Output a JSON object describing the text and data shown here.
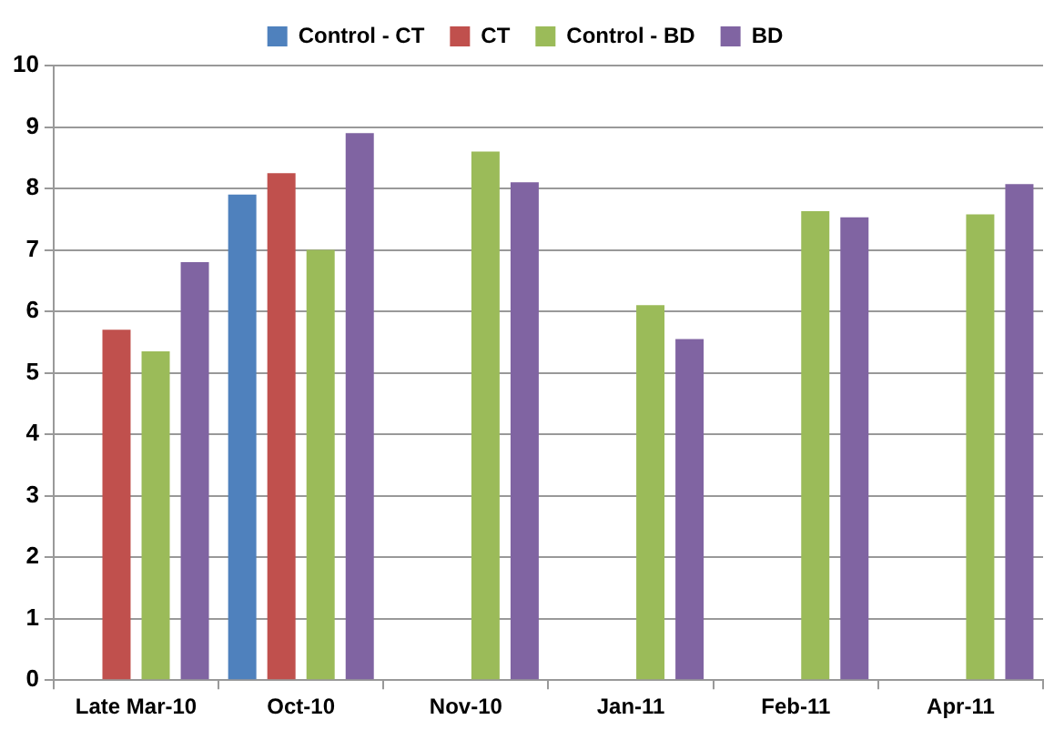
{
  "chart_data": {
    "type": "bar",
    "categories": [
      "Late Mar-10",
      "Oct-10",
      "Nov-10",
      "Jan-11",
      "Feb-11",
      "Apr-11"
    ],
    "series": [
      {
        "name": "Control - CT",
        "color": "#4f81bd",
        "values": [
          null,
          7.9,
          null,
          null,
          null,
          null
        ]
      },
      {
        "name": "CT",
        "color": "#c0504d",
        "values": [
          5.7,
          8.25,
          null,
          null,
          null,
          null
        ]
      },
      {
        "name": "Control - BD",
        "color": "#9bbb59",
        "values": [
          5.35,
          7.0,
          8.6,
          6.1,
          7.63,
          7.58
        ]
      },
      {
        "name": "BD",
        "color": "#8064a2",
        "values": [
          6.8,
          8.9,
          8.1,
          5.55,
          7.53,
          8.07
        ]
      }
    ],
    "ylim": [
      0,
      10
    ],
    "yticks": [
      0,
      1,
      2,
      3,
      4,
      5,
      6,
      7,
      8,
      9,
      10
    ],
    "grid": "y",
    "legend": "top"
  }
}
